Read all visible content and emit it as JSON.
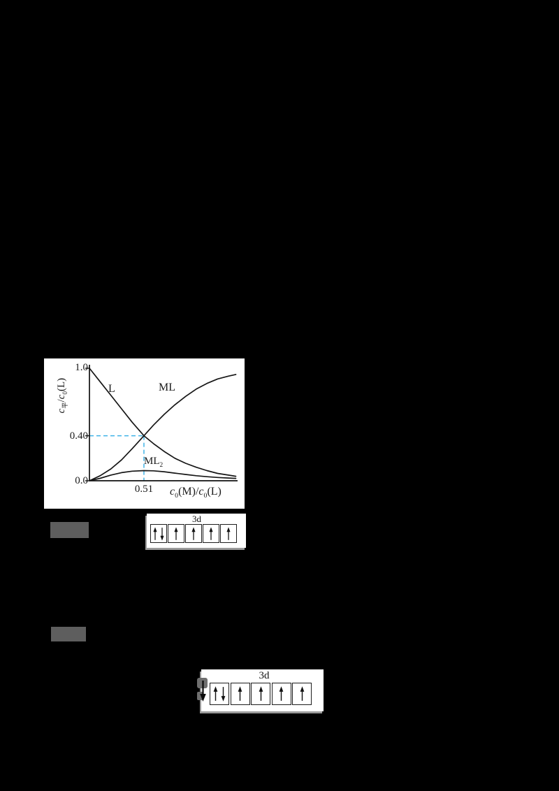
{
  "page": {
    "background": "#000000"
  },
  "chart_data": {
    "type": "line",
    "title": "",
    "xlabel": "c0(M)/c0(L)",
    "ylabel": "c平/c0(L)",
    "xlim": [
      0,
      1.4
    ],
    "ylim": [
      0,
      1.0
    ],
    "grid": false,
    "legend": "inline-labels",
    "x_ticks": [
      {
        "value": 0.51,
        "label": "0.51"
      }
    ],
    "y_ticks": [
      {
        "value": 1.0,
        "label": "1.0"
      },
      {
        "value": 0.4,
        "label": "0.40"
      },
      {
        "value": 0.0,
        "label": "0.0"
      }
    ],
    "guides": {
      "x": 0.51,
      "y": 0.4,
      "color": "#3fb3e8",
      "style": "dashed"
    },
    "series": [
      {
        "name": "L",
        "x": [
          0,
          0.1,
          0.2,
          0.3,
          0.4,
          0.51,
          0.6,
          0.7,
          0.8,
          0.9,
          1.0,
          1.1,
          1.2,
          1.3,
          1.37
        ],
        "y": [
          1.0,
          0.88,
          0.76,
          0.64,
          0.52,
          0.4,
          0.33,
          0.26,
          0.2,
          0.155,
          0.12,
          0.09,
          0.065,
          0.05,
          0.04
        ]
      },
      {
        "name": "ML",
        "x": [
          0,
          0.1,
          0.2,
          0.3,
          0.4,
          0.51,
          0.6,
          0.7,
          0.8,
          0.9,
          1.0,
          1.1,
          1.2,
          1.3,
          1.37
        ],
        "y": [
          0,
          0.045,
          0.105,
          0.185,
          0.285,
          0.4,
          0.495,
          0.59,
          0.675,
          0.75,
          0.815,
          0.865,
          0.905,
          0.93,
          0.945
        ]
      },
      {
        "name": "ML2",
        "x": [
          0,
          0.1,
          0.2,
          0.3,
          0.4,
          0.51,
          0.6,
          0.7,
          0.8,
          0.9,
          1.0,
          1.1,
          1.2,
          1.3,
          1.37
        ],
        "y": [
          0,
          0.022,
          0.05,
          0.072,
          0.085,
          0.09,
          0.088,
          0.08,
          0.068,
          0.056,
          0.045,
          0.036,
          0.029,
          0.024,
          0.021
        ]
      }
    ]
  },
  "labels": {
    "ylabel": [
      {
        "t": "c",
        "i": 1
      },
      {
        "t": "平",
        "s": 1
      },
      {
        "t": "/"
      },
      {
        "t": "c",
        "i": 1
      },
      {
        "t": "0",
        "s": 1
      },
      {
        "t": "(L)"
      }
    ],
    "xlabel": [
      {
        "t": "c",
        "i": 1
      },
      {
        "t": "0",
        "s": 1
      },
      {
        "t": "(M)/"
      },
      {
        "t": "c",
        "i": 1
      },
      {
        "t": "0",
        "s": 1
      },
      {
        "t": "(L)"
      }
    ],
    "L": [
      {
        "t": "L"
      }
    ],
    "ML": [
      {
        "t": "ML"
      }
    ],
    "ML2": [
      {
        "t": "ML"
      },
      {
        "t": "2",
        "s": 1
      }
    ]
  },
  "answer_badges": [
    {
      "text": "",
      "redacted": true,
      "color": "#2e74b8"
    },
    {
      "text": "",
      "redacted": true,
      "color": "#2e74b8"
    }
  ],
  "orbital_diagrams": [
    {
      "label": "3d",
      "boxes": [
        [
          "up",
          "down"
        ],
        [
          "up"
        ],
        [
          "up"
        ],
        [
          "up"
        ],
        [
          "up"
        ]
      ]
    },
    {
      "label": "3d",
      "boxes": [
        [
          "up",
          "down"
        ],
        [
          "up"
        ],
        [
          "up"
        ],
        [
          "up"
        ],
        [
          "up"
        ]
      ],
      "edge_glyph": "down-arrow"
    }
  ]
}
